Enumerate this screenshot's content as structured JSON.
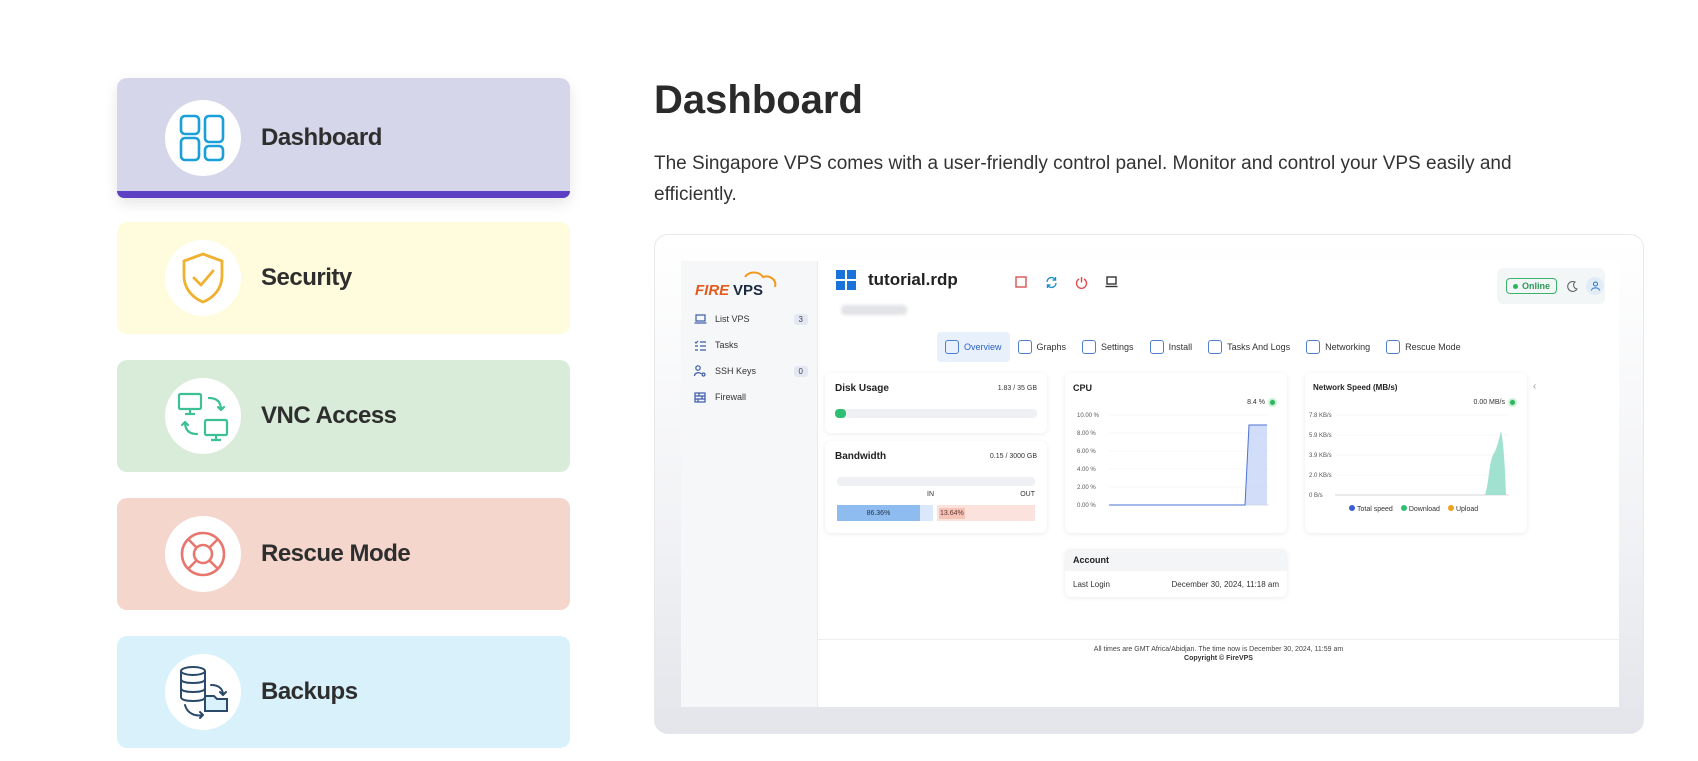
{
  "features": [
    {
      "label": "Dashboard",
      "icon": "dashboard-grid-icon",
      "bg": "#d6d6ea",
      "active": true
    },
    {
      "label": "Security",
      "icon": "shield-check-icon",
      "bg": "#fefcdc",
      "active": false
    },
    {
      "label": "VNC Access",
      "icon": "remote-desktop-icon",
      "bg": "#d8ecd9",
      "active": false
    },
    {
      "label": "Rescue Mode",
      "icon": "lifebuoy-icon",
      "bg": "#f5d6cd",
      "active": false
    },
    {
      "label": "Backups",
      "icon": "database-backup-icon",
      "bg": "#d8f1fb",
      "active": false
    }
  ],
  "section": {
    "title": "Dashboard",
    "description": "The Singapore VPS comes with a user-friendly control panel. Monitor and control your VPS easily and efficiently."
  },
  "panel": {
    "logo": {
      "part1": "FIRE",
      "part2": "VPS"
    },
    "sidebar": [
      {
        "label": "List VPS",
        "icon": "laptop-icon",
        "badge": "3"
      },
      {
        "label": "Tasks",
        "icon": "checklist-icon",
        "badge": ""
      },
      {
        "label": "SSH Keys",
        "icon": "key-user-icon",
        "badge": "0"
      },
      {
        "label": "Firewall",
        "icon": "firewall-icon",
        "badge": ""
      }
    ],
    "server_name": "tutorial.rdp",
    "status": "Online",
    "tabs": [
      {
        "label": "Overview",
        "icon": "overview-icon",
        "active": true
      },
      {
        "label": "Graphs",
        "icon": "graph-icon",
        "active": false
      },
      {
        "label": "Settings",
        "icon": "settings-icon",
        "active": false
      },
      {
        "label": "Install",
        "icon": "install-icon",
        "active": false
      },
      {
        "label": "Tasks And Logs",
        "icon": "tasks-icon",
        "active": false
      },
      {
        "label": "Networking",
        "icon": "network-icon",
        "active": false
      },
      {
        "label": "Rescue Mode",
        "icon": "rescue-icon",
        "active": false
      }
    ],
    "disk": {
      "title": "Disk Usage",
      "value": "1.83 / 35 GB",
      "fraction": 0.052
    },
    "bandwidth": {
      "title": "Bandwidth",
      "value": "0.15 / 3000 GB",
      "in_label": "IN",
      "out_label": "OUT",
      "in_pct": "86.36%",
      "out_pct": "13.64%",
      "in_fraction": 0.8636
    },
    "cpu": {
      "title": "CPU",
      "current": "8.4 %",
      "ticks": [
        "10.00 %",
        "8.00 %",
        "6.00 %",
        "4.00 %",
        "2.00 %",
        "0.00 %"
      ]
    },
    "network": {
      "title": "Network Speed (MB/s)",
      "current": "0.00 MB/s",
      "ticks": [
        "7.8 KB/s",
        "5.9 KB/s",
        "3.9 KB/s",
        "2.0 KB/s",
        "0 B/s"
      ],
      "legend": [
        "Total speed",
        "Download",
        "Upload"
      ]
    },
    "account": {
      "title": "Account",
      "last_login_label": "Last Login",
      "last_login_value": "December 30, 2024, 11:18 am"
    },
    "footer": {
      "times": "All times are GMT Africa/Abidjan. The time now is December 30, 2024, 11:59 am",
      "copyright": "Copyright © FireVPS"
    }
  }
}
